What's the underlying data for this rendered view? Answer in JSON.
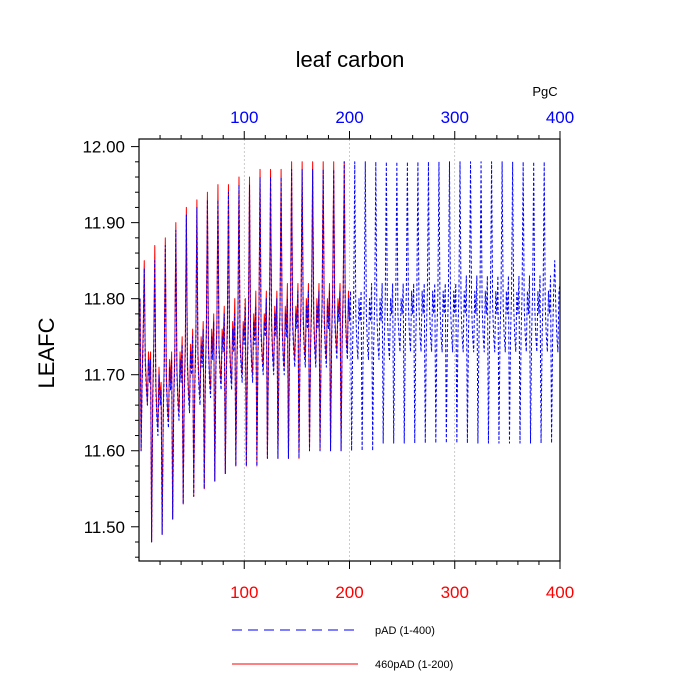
{
  "chart_data": {
    "type": "line",
    "title": "leaf carbon",
    "units": "PgC",
    "ylabel": "LEAFC",
    "xlim": [
      0,
      400
    ],
    "ylim": [
      11.455,
      12.01
    ],
    "y_ticks": [
      "11.50",
      "11.60",
      "11.70",
      "11.80",
      "11.90",
      "12.00"
    ],
    "x_ticks_bottom": [
      "100",
      "200",
      "300",
      "400"
    ],
    "x_ticks_top": [
      "100",
      "200",
      "300",
      "400"
    ],
    "gridlines": "vertical dashed at 100, 200, 300",
    "colors": {
      "bottom_ticks": "#ff0000",
      "top_ticks": "#0000ff",
      "axis": "#000000"
    },
    "series": [
      {
        "name": "pAD (1-400)",
        "color": "#0000ff",
        "dash": "dashed",
        "period": 10,
        "cycles": [
          {
            "x": 1,
            "values": [
              11.8,
              11.6,
              11.69,
              11.75,
              11.84,
              11.71,
              11.68,
              11.66,
              11.72,
              11.69
            ]
          },
          {
            "x": 11,
            "values": [
              11.72,
              11.48,
              11.66,
              11.73,
              11.85,
              11.68,
              11.64,
              11.62,
              11.7,
              11.66
            ]
          },
          {
            "x": 21,
            "values": [
              11.68,
              11.49,
              11.64,
              11.71,
              11.87,
              11.69,
              11.65,
              11.63,
              11.71,
              11.68
            ]
          },
          {
            "x": 31,
            "values": [
              11.72,
              11.51,
              11.66,
              11.72,
              11.89,
              11.7,
              11.66,
              11.64,
              11.72,
              11.69
            ]
          },
          {
            "x": 41,
            "values": [
              11.74,
              11.53,
              11.67,
              11.73,
              11.91,
              11.71,
              11.67,
              11.65,
              11.73,
              11.7
            ]
          },
          {
            "x": 51,
            "values": [
              11.75,
              11.54,
              11.68,
              11.74,
              11.92,
              11.72,
              11.68,
              11.66,
              11.74,
              11.71
            ]
          },
          {
            "x": 61,
            "values": [
              11.76,
              11.55,
              11.69,
              11.75,
              11.93,
              11.73,
              11.69,
              11.67,
              11.75,
              11.72
            ]
          },
          {
            "x": 71,
            "values": [
              11.77,
              11.56,
              11.7,
              11.76,
              11.93,
              11.73,
              11.7,
              11.68,
              11.75,
              11.73
            ]
          },
          {
            "x": 81,
            "values": [
              11.78,
              11.57,
              11.7,
              11.76,
              11.94,
              11.74,
              11.7,
              11.68,
              11.76,
              11.73
            ]
          },
          {
            "x": 91,
            "values": [
              11.78,
              11.58,
              11.71,
              11.77,
              11.95,
              11.74,
              11.71,
              11.69,
              11.76,
              11.74
            ]
          },
          {
            "x": 101,
            "values": [
              11.79,
              11.58,
              11.71,
              11.77,
              11.95,
              11.75,
              11.71,
              11.69,
              11.77,
              11.74
            ]
          },
          {
            "x": 111,
            "values": [
              11.79,
              11.58,
              11.72,
              11.78,
              11.96,
              11.75,
              11.72,
              11.7,
              11.77,
              11.75
            ]
          },
          {
            "x": 121,
            "values": [
              11.8,
              11.59,
              11.72,
              11.78,
              11.96,
              11.76,
              11.72,
              11.7,
              11.78,
              11.75
            ]
          },
          {
            "x": 131,
            "values": [
              11.8,
              11.59,
              11.72,
              11.78,
              11.96,
              11.76,
              11.72,
              11.7,
              11.78,
              11.75
            ]
          },
          {
            "x": 141,
            "values": [
              11.8,
              11.59,
              11.73,
              11.79,
              11.97,
              11.76,
              11.73,
              11.71,
              11.78,
              11.76
            ]
          },
          {
            "x": 151,
            "values": [
              11.81,
              11.59,
              11.73,
              11.79,
              11.97,
              11.77,
              11.73,
              11.71,
              11.79,
              11.76
            ]
          },
          {
            "x": 161,
            "values": [
              11.81,
              11.6,
              11.73,
              11.79,
              11.97,
              11.77,
              11.73,
              11.71,
              11.79,
              11.76
            ]
          },
          {
            "x": 171,
            "values": [
              11.81,
              11.6,
              11.73,
              11.79,
              11.97,
              11.77,
              11.73,
              11.71,
              11.79,
              11.76
            ]
          },
          {
            "x": 181,
            "values": [
              11.81,
              11.6,
              11.74,
              11.8,
              11.97,
              11.77,
              11.74,
              11.72,
              11.79,
              11.77
            ]
          },
          {
            "x": 191,
            "values": [
              11.81,
              11.6,
              11.74,
              11.8,
              11.98,
              11.78,
              11.74,
              11.72,
              11.8,
              11.77
            ]
          },
          {
            "x": 201,
            "values": [
              11.81,
              11.6,
              11.74,
              11.8,
              11.98,
              11.78,
              11.74,
              11.72,
              11.8,
              11.77
            ]
          },
          {
            "x": 211,
            "values": [
              11.81,
              11.6,
              11.74,
              11.8,
              11.98,
              11.78,
              11.74,
              11.72,
              11.8,
              11.77
            ]
          },
          {
            "x": 221,
            "values": [
              11.82,
              11.6,
              11.74,
              11.8,
              11.98,
              11.78,
              11.74,
              11.72,
              11.8,
              11.77
            ]
          },
          {
            "x": 231,
            "values": [
              11.82,
              11.61,
              11.74,
              11.8,
              11.98,
              11.78,
              11.74,
              11.72,
              11.8,
              11.78
            ]
          },
          {
            "x": 241,
            "values": [
              11.82,
              11.61,
              11.75,
              11.81,
              11.98,
              11.78,
              11.75,
              11.73,
              11.8,
              11.78
            ]
          },
          {
            "x": 251,
            "values": [
              11.82,
              11.61,
              11.75,
              11.81,
              11.98,
              11.79,
              11.75,
              11.73,
              11.81,
              11.78
            ]
          },
          {
            "x": 261,
            "values": [
              11.82,
              11.61,
              11.75,
              11.81,
              11.98,
              11.79,
              11.75,
              11.73,
              11.81,
              11.78
            ]
          },
          {
            "x": 271,
            "values": [
              11.82,
              11.61,
              11.75,
              11.81,
              11.98,
              11.79,
              11.75,
              11.73,
              11.81,
              11.78
            ]
          },
          {
            "x": 281,
            "values": [
              11.82,
              11.61,
              11.75,
              11.81,
              11.98,
              11.79,
              11.75,
              11.73,
              11.81,
              11.78
            ]
          },
          {
            "x": 291,
            "values": [
              11.82,
              11.61,
              11.75,
              11.81,
              11.98,
              11.79,
              11.75,
              11.73,
              11.81,
              11.78
            ]
          },
          {
            "x": 301,
            "values": [
              11.82,
              11.61,
              11.75,
              11.81,
              11.98,
              11.79,
              11.75,
              11.73,
              11.81,
              11.78
            ]
          },
          {
            "x": 311,
            "values": [
              11.83,
              11.61,
              11.75,
              11.81,
              11.98,
              11.79,
              11.75,
              11.73,
              11.81,
              11.78
            ]
          },
          {
            "x": 321,
            "values": [
              11.83,
              11.61,
              11.75,
              11.81,
              11.98,
              11.79,
              11.75,
              11.73,
              11.81,
              11.78
            ]
          },
          {
            "x": 331,
            "values": [
              11.83,
              11.61,
              11.75,
              11.81,
              11.98,
              11.79,
              11.75,
              11.73,
              11.81,
              11.78
            ]
          },
          {
            "x": 341,
            "values": [
              11.83,
              11.61,
              11.75,
              11.81,
              11.98,
              11.79,
              11.75,
              11.73,
              11.81,
              11.78
            ]
          },
          {
            "x": 351,
            "values": [
              11.83,
              11.61,
              11.75,
              11.81,
              11.98,
              11.79,
              11.75,
              11.73,
              11.81,
              11.78
            ]
          },
          {
            "x": 361,
            "values": [
              11.83,
              11.61,
              11.75,
              11.81,
              11.98,
              11.79,
              11.75,
              11.73,
              11.81,
              11.78
            ]
          },
          {
            "x": 371,
            "values": [
              11.83,
              11.61,
              11.75,
              11.81,
              11.98,
              11.79,
              11.75,
              11.73,
              11.81,
              11.78
            ]
          },
          {
            "x": 381,
            "values": [
              11.83,
              11.61,
              11.75,
              11.81,
              11.98,
              11.79,
              11.75,
              11.73,
              11.81,
              11.78
            ]
          },
          {
            "x": 391,
            "values": [
              11.83,
              11.61,
              11.75,
              11.81,
              11.85,
              11.79,
              11.75,
              11.73,
              11.81,
              11.82
            ]
          }
        ]
      },
      {
        "name": "460pAD (1-200)",
        "color": "#ff0000",
        "dash": "solid",
        "period": 10,
        "cycles": [
          {
            "x": 1,
            "values": [
              11.8,
              11.6,
              11.7,
              11.76,
              11.85,
              11.72,
              11.69,
              11.66,
              11.73,
              11.7
            ]
          },
          {
            "x": 11,
            "values": [
              11.73,
              11.48,
              11.67,
              11.74,
              11.87,
              11.69,
              11.65,
              11.63,
              11.71,
              11.67
            ]
          },
          {
            "x": 21,
            "values": [
              11.69,
              11.49,
              11.65,
              11.72,
              11.88,
              11.7,
              11.66,
              11.64,
              11.72,
              11.69
            ]
          },
          {
            "x": 31,
            "values": [
              11.73,
              11.51,
              11.67,
              11.73,
              11.9,
              11.71,
              11.67,
              11.65,
              11.73,
              11.7
            ]
          },
          {
            "x": 41,
            "values": [
              11.75,
              11.53,
              11.68,
              11.74,
              11.92,
              11.72,
              11.68,
              11.66,
              11.74,
              11.71
            ]
          },
          {
            "x": 51,
            "values": [
              11.76,
              11.54,
              11.69,
              11.75,
              11.93,
              11.73,
              11.69,
              11.67,
              11.75,
              11.72
            ]
          },
          {
            "x": 61,
            "values": [
              11.77,
              11.55,
              11.7,
              11.76,
              11.94,
              11.74,
              11.7,
              11.68,
              11.76,
              11.73
            ]
          },
          {
            "x": 71,
            "values": [
              11.78,
              11.56,
              11.71,
              11.77,
              11.95,
              11.74,
              11.71,
              11.69,
              11.76,
              11.74
            ]
          },
          {
            "x": 81,
            "values": [
              11.79,
              11.57,
              11.71,
              11.77,
              11.95,
              11.75,
              11.71,
              11.69,
              11.77,
              11.74
            ]
          },
          {
            "x": 91,
            "values": [
              11.8,
              11.58,
              11.72,
              11.78,
              11.96,
              11.75,
              11.72,
              11.7,
              11.77,
              11.75
            ]
          },
          {
            "x": 101,
            "values": [
              11.8,
              11.58,
              11.72,
              11.78,
              11.96,
              11.76,
              11.72,
              11.7,
              11.78,
              11.75
            ]
          },
          {
            "x": 111,
            "values": [
              11.81,
              11.58,
              11.73,
              11.79,
              11.97,
              11.76,
              11.73,
              11.71,
              11.78,
              11.76
            ]
          },
          {
            "x": 121,
            "values": [
              11.81,
              11.59,
              11.73,
              11.79,
              11.97,
              11.77,
              11.73,
              11.71,
              11.79,
              11.76
            ]
          },
          {
            "x": 131,
            "values": [
              11.81,
              11.59,
              11.73,
              11.79,
              11.97,
              11.77,
              11.73,
              11.71,
              11.79,
              11.76
            ]
          },
          {
            "x": 141,
            "values": [
              11.82,
              11.59,
              11.74,
              11.8,
              11.98,
              11.77,
              11.74,
              11.72,
              11.79,
              11.77
            ]
          },
          {
            "x": 151,
            "values": [
              11.82,
              11.59,
              11.74,
              11.8,
              11.98,
              11.78,
              11.74,
              11.72,
              11.8,
              11.77
            ]
          },
          {
            "x": 161,
            "values": [
              11.82,
              11.6,
              11.74,
              11.8,
              11.98,
              11.78,
              11.74,
              11.72,
              11.8,
              11.77
            ]
          },
          {
            "x": 171,
            "values": [
              11.82,
              11.6,
              11.74,
              11.8,
              11.98,
              11.78,
              11.74,
              11.72,
              11.8,
              11.77
            ]
          },
          {
            "x": 181,
            "values": [
              11.82,
              11.6,
              11.75,
              11.81,
              11.98,
              11.78,
              11.75,
              11.73,
              11.8,
              11.78
            ]
          },
          {
            "x": 191,
            "values": [
              11.82,
              11.6,
              11.75,
              11.81,
              11.98,
              11.79,
              11.75,
              11.73,
              11.81,
              11.78
            ]
          }
        ]
      }
    ]
  }
}
